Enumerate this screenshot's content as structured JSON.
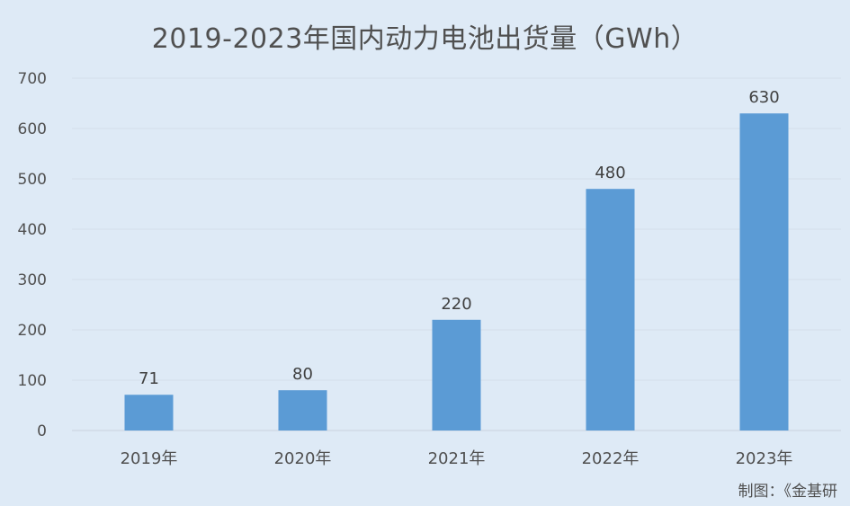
{
  "chart_data": {
    "type": "bar",
    "title": "2019-2023年国内动力电池出货量（GWh）",
    "categories": [
      "2019年",
      "2020年",
      "2021年",
      "2022年",
      "2023年"
    ],
    "values": [
      71,
      80,
      220,
      480,
      630
    ],
    "data_labels": [
      "71",
      "80",
      "220",
      "480",
      "630"
    ],
    "ylim": [
      0,
      700
    ],
    "yticks": [
      0,
      100,
      200,
      300,
      400,
      500,
      600,
      700
    ],
    "grid": true,
    "bar_color": "#5b9bd5",
    "gridline_color": "#d4dfea"
  },
  "footer": {
    "source": "制图：《金基研"
  }
}
